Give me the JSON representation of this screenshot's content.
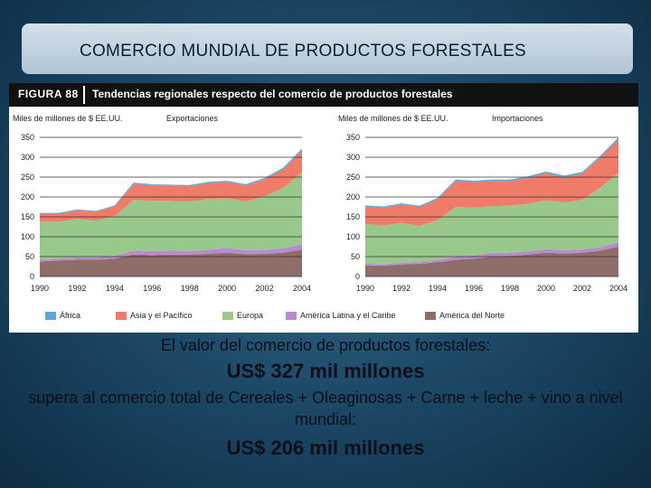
{
  "slide": {
    "title": "COMERCIO MUNDIAL DE PRODUCTOS FORESTALES",
    "line1": "El valor del comercio de productos forestales:",
    "line2": "US$ 327 mil millones",
    "line3": "supera al comercio total de Cereales + Oleaginosas + Carne + leche + vino a nivel mundial:",
    "line4": "US$ 206 mil millones"
  },
  "figure": {
    "label": "FIGURA 88",
    "title": "Tendencias regionales respecto del comercio de productos forestales"
  },
  "colors": {
    "africa": "#5aa9d9",
    "asia": "#ef7b68",
    "europa": "#98c98a",
    "latam": "#b98ad0",
    "norte": "#8f6d68"
  },
  "chart_data": [
    {
      "type": "area",
      "unit_label": "Miles de millones de $ EE.UU.",
      "subtitle": "Exportaciones",
      "x": [
        1990,
        1991,
        1992,
        1993,
        1994,
        1995,
        1996,
        1997,
        1998,
        1999,
        2000,
        2001,
        2002,
        2003,
        2004
      ],
      "x_ticks": [
        "1990",
        "1992",
        "1994",
        "1996",
        "1998",
        "2000",
        "2002",
        "2004"
      ],
      "y_ticks": [
        "0",
        "50",
        "100",
        "150",
        "200",
        "250",
        "300",
        "350"
      ],
      "ylim": [
        0,
        350
      ],
      "stacked": true,
      "series": [
        {
          "name": "América del Norte",
          "key": "norte",
          "values": [
            38,
            40,
            42,
            42,
            45,
            55,
            54,
            55,
            55,
            57,
            60,
            56,
            57,
            60,
            68
          ]
        },
        {
          "name": "América Latina y el Caribe",
          "key": "latam",
          "values": [
            5,
            5,
            6,
            6,
            7,
            10,
            10,
            10,
            9,
            10,
            12,
            10,
            10,
            11,
            13
          ]
        },
        {
          "name": "Europa",
          "key": "europa",
          "values": [
            95,
            93,
            97,
            93,
            100,
            128,
            127,
            125,
            125,
            128,
            125,
            123,
            135,
            152,
            182
          ]
        },
        {
          "name": "Asia y el Pacífico",
          "key": "asia",
          "values": [
            20,
            20,
            22,
            22,
            25,
            40,
            38,
            38,
            38,
            40,
            41,
            40,
            43,
            47,
            55
          ]
        },
        {
          "name": "África",
          "key": "africa",
          "values": [
            2,
            2,
            2,
            2,
            2,
            3,
            3,
            3,
            3,
            3,
            3,
            3,
            3,
            4,
            4
          ]
        }
      ]
    },
    {
      "type": "area",
      "unit_label": "Miles de millones de $ EE.UU.",
      "subtitle": "Importaciones",
      "x": [
        1990,
        1991,
        1992,
        1993,
        1994,
        1995,
        1996,
        1997,
        1998,
        1999,
        2000,
        2001,
        2002,
        2003,
        2004
      ],
      "x_ticks": [
        "1990",
        "1992",
        "1994",
        "1996",
        "1998",
        "2000",
        "2002",
        "2004"
      ],
      "y_ticks": [
        "0",
        "50",
        "100",
        "150",
        "200",
        "250",
        "300",
        "350"
      ],
      "ylim": [
        0,
        350
      ],
      "stacked": true,
      "series": [
        {
          "name": "América del Norte",
          "key": "norte",
          "values": [
            28,
            27,
            30,
            32,
            36,
            42,
            45,
            50,
            52,
            55,
            60,
            58,
            60,
            65,
            75
          ]
        },
        {
          "name": "América Latina y el Caribe",
          "key": "latam",
          "values": [
            4,
            4,
            5,
            5,
            6,
            8,
            8,
            9,
            8,
            8,
            9,
            8,
            8,
            9,
            11
          ]
        },
        {
          "name": "Europa",
          "key": "europa",
          "values": [
            100,
            98,
            100,
            90,
            100,
            125,
            120,
            118,
            118,
            120,
            123,
            120,
            125,
            150,
            175
          ]
        },
        {
          "name": "Asia y el Pacífico",
          "key": "asia",
          "values": [
            44,
            44,
            46,
            48,
            53,
            65,
            64,
            63,
            62,
            65,
            68,
            64,
            66,
            76,
            84
          ]
        },
        {
          "name": "África",
          "key": "africa",
          "values": [
            3,
            3,
            3,
            3,
            3,
            4,
            4,
            4,
            4,
            4,
            4,
            4,
            4,
            4,
            5
          ]
        }
      ]
    }
  ],
  "legend": [
    {
      "label": "África",
      "key": "africa"
    },
    {
      "label": "Asia y el Pacífico",
      "key": "asia"
    },
    {
      "label": "Europa",
      "key": "europa"
    },
    {
      "label": "América Latina y el Caribe",
      "key": "latam"
    },
    {
      "label": "América del Norte",
      "key": "norte"
    }
  ]
}
